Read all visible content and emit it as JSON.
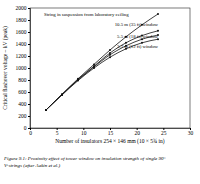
{
  "chart_data": {
    "type": "line",
    "y_label": "Critical flashover voltage – kV (peak)",
    "x_label": "Number of insulators 254 × 146 mm (10 × 5¾ in)",
    "caption": [
      "Figure 9.1: Proximity effect of tower window on insulation strength of single 90°",
      "V-strings (after Aakin et al.)"
    ],
    "x": [
      3,
      6,
      9,
      12,
      15,
      18,
      21,
      24
    ],
    "xlim": [
      0,
      30
    ],
    "xticks": [
      0,
      5,
      10,
      15,
      20,
      25,
      30
    ],
    "ylim": [
      0,
      2000
    ],
    "yticks": [
      0,
      200,
      400,
      600,
      800,
      1000,
      1200,
      1400,
      1600,
      1800,
      2000
    ],
    "grid": false,
    "marker": "circle",
    "line_style": "solid",
    "color": "#111111",
    "series": [
      {
        "name": "String in suspension from laboratory ceiling",
        "values": [
          300,
          560,
          820,
          1060,
          1300,
          1520,
          1720,
          1900
        ]
      },
      {
        "name": "10.5 m (35 ft) window",
        "values": [
          300,
          560,
          810,
          1030,
          1250,
          1420,
          1540,
          1620
        ]
      },
      {
        "name": "5.5 m (18 ft) window",
        "values": [
          300,
          560,
          800,
          1020,
          1220,
          1370,
          1480,
          1550
        ]
      },
      {
        "name": "3.7 m (12 ft) window",
        "values": [
          300,
          550,
          790,
          1000,
          1180,
          1320,
          1420,
          1480
        ]
      }
    ]
  }
}
